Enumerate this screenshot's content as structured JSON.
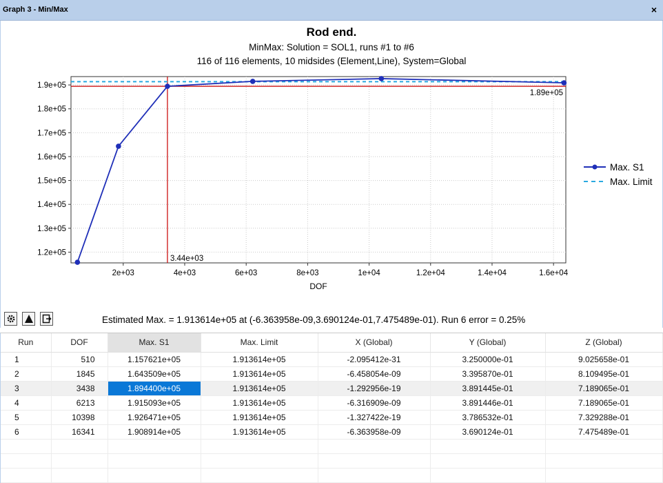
{
  "window": {
    "title": "Graph 3 - Min/Max",
    "close_label": "×"
  },
  "toolbar": {
    "icons": [
      "settings-icon",
      "triangle-icon",
      "export-icon"
    ]
  },
  "chart_data": {
    "type": "line",
    "title": "Rod end.",
    "subtitle1": "MinMax: Solution = SOL1, runs #1 to #6",
    "subtitle2": "116 of 116 elements, 10 midsides (Element,Line), System=Global",
    "xlabel": "DOF",
    "ylabel": "",
    "xlim": [
      300,
      16400
    ],
    "ylim": [
      115500,
      193500
    ],
    "xticks": [
      2000,
      4000,
      6000,
      8000,
      10000,
      12000,
      14000,
      16000
    ],
    "xtick_labels": [
      "2e+03",
      "4e+03",
      "6e+03",
      "8e+03",
      "1e+04",
      "1.2e+04",
      "1.4e+04",
      "1.6e+04"
    ],
    "yticks": [
      120000,
      130000,
      140000,
      150000,
      160000,
      170000,
      180000,
      190000
    ],
    "ytick_labels": [
      "1.2e+05",
      "1.3e+05",
      "1.4e+05",
      "1.5e+05",
      "1.6e+05",
      "1.7e+05",
      "1.8e+05",
      "1.9e+05"
    ],
    "grid": true,
    "legend_position": "right",
    "series": [
      {
        "name": "Max. S1",
        "x": [
          510,
          1845,
          3438,
          6213,
          10398,
          16341
        ],
        "values": [
          115762.1,
          164350.9,
          189440.0,
          191509.3,
          192647.1,
          190891.4
        ],
        "color": "#1f2fb8",
        "style": "solid-marker"
      },
      {
        "name": "Max. Limit",
        "x": [
          300,
          16400
        ],
        "values": [
          191361.4,
          191361.4
        ],
        "color": "#29a9e0",
        "style": "dashed"
      }
    ],
    "crosshair": {
      "x": 3438,
      "y": 189440.0,
      "x_label": "3.44e+03",
      "y_label": "1.89e+05",
      "color": "#cc1111"
    }
  },
  "estimate_text": "Estimated Max. = 1.913614e+05 at (-6.363958e-09,3.690124e-01,7.475489e-01). Run 6 error =  0.25%",
  "table": {
    "columns": [
      "Run",
      "DOF",
      "Max. S1",
      "Max. Limit",
      "X (Global)",
      "Y (Global)",
      "Z (Global)"
    ],
    "sorted_column": 2,
    "selected_row": 2,
    "rows": [
      [
        "1",
        "510",
        "1.157621e+05",
        "1.913614e+05",
        "-2.095412e-31",
        "3.250000e-01",
        "9.025658e-01"
      ],
      [
        "2",
        "1845",
        "1.643509e+05",
        "1.913614e+05",
        "-6.458054e-09",
        "3.395870e-01",
        "8.109495e-01"
      ],
      [
        "3",
        "3438",
        "1.894400e+05",
        "1.913614e+05",
        "-1.292956e-19",
        "3.891445e-01",
        "7.189065e-01"
      ],
      [
        "4",
        "6213",
        "1.915093e+05",
        "1.913614e+05",
        "-6.316909e-09",
        "3.891446e-01",
        "7.189065e-01"
      ],
      [
        "5",
        "10398",
        "1.926471e+05",
        "1.913614e+05",
        "-1.327422e-19",
        "3.786532e-01",
        "7.329288e-01"
      ],
      [
        "6",
        "16341",
        "1.908914e+05",
        "1.913614e+05",
        "-6.363958e-09",
        "3.690124e-01",
        "7.475489e-01"
      ]
    ],
    "empty_rows": 3
  }
}
